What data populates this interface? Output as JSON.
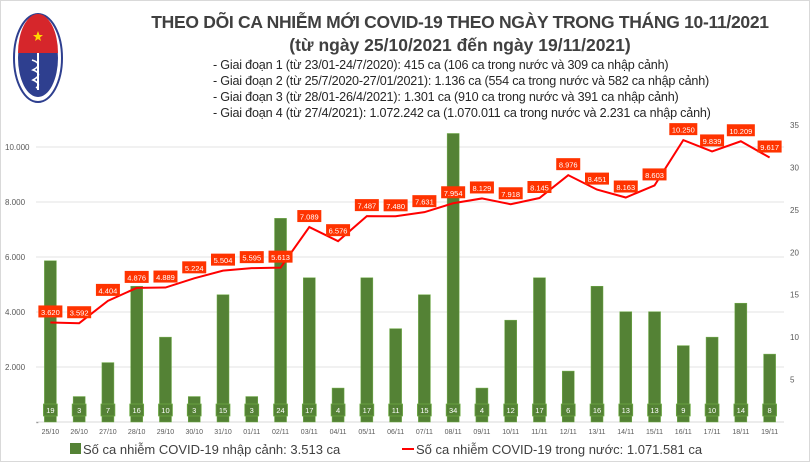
{
  "header": {
    "logo_text_top": "BỘ Y TẾ",
    "logo_text_bottom": "MINISTRY OF HEALTH",
    "title": "THEO DÕI CA NHIỄM MỚI COVID-19 THEO NGÀY TRONG THÁNG 10-11/2021",
    "subtitle": "(từ ngày 25/10/2021 đến ngày 19/11/2021)",
    "stages": [
      "- Giai đoạn 1 (từ 23/01-24/7/2020): 415 ca (106 ca trong nước và 309 ca nhập cảnh)",
      "- Giai đoạn 2 (từ 25/7/2020-27/01/2021): 1.136 ca (554 ca trong nước và 582 ca nhập cảnh)",
      "- Giai đoạn 3 (từ 28/01-26/4/2021): 1.301 ca (910 ca trong nước và 391 ca nhập cảnh)",
      "- Giai đoạn 4 (từ 27/4/2021): 1.072.242 ca (1.070.011 ca trong nước và 2.231 ca nhập cảnh)"
    ]
  },
  "chart_data": {
    "type": "bar+line",
    "categories": [
      "25/10",
      "26/10",
      "27/10",
      "28/10",
      "29/10",
      "30/10",
      "31/10",
      "01/11",
      "02/11",
      "03/11",
      "04/11",
      "05/11",
      "06/11",
      "07/11",
      "08/11",
      "09/11",
      "10/11",
      "11/11",
      "12/11",
      "13/11",
      "14/11",
      "15/11",
      "16/11",
      "17/11",
      "18/11",
      "19/11"
    ],
    "series": [
      {
        "name": "Số ca nhiễm COVID-19 nhập cảnh: 3.513 ca",
        "type": "bar",
        "axis": "right",
        "color": "#548235",
        "values": [
          19,
          3,
          7,
          16,
          10,
          3,
          15,
          3,
          24,
          17,
          4,
          17,
          11,
          15,
          34,
          4,
          12,
          17,
          6,
          16,
          13,
          13,
          9,
          10,
          14,
          8
        ]
      },
      {
        "name": "Số ca nhiễm COVID-19 trong nước: 1.071.581 ca",
        "type": "line",
        "axis": "left",
        "color": "#ff0000",
        "values": [
          3620,
          3592,
          4404,
          4876,
          4889,
          5224,
          5504,
          5595,
          5613,
          7089,
          6576,
          7487,
          7480,
          7631,
          7954,
          8129,
          7918,
          8145,
          8976,
          8451,
          8163,
          8603,
          10250,
          9839,
          10209,
          9617
        ],
        "labels": [
          "3.620",
          "3.592",
          "4.404",
          "4.876",
          "4.889",
          "5.224",
          "5.504",
          "5.595",
          "5.613",
          "7.089",
          "6.576",
          "7.487",
          "7.480",
          "7.631",
          "7.954",
          "8.129",
          "7.918",
          "8.145",
          "8.976",
          "8.451",
          "8.163",
          "8.603",
          "10.250",
          "9.839",
          "10.209",
          "9.617"
        ]
      }
    ],
    "left_axis": {
      "ticks": [
        "-",
        "2.000",
        "4.000",
        "6.000",
        "8.000",
        "10.000"
      ],
      "tick_values": [
        0,
        2000,
        4000,
        6000,
        8000,
        10000
      ]
    },
    "right_axis": {
      "ticks": [
        "5",
        "10",
        "15",
        "20",
        "25",
        "30",
        "35"
      ],
      "tick_values": [
        5,
        10,
        15,
        20,
        25,
        30,
        35
      ],
      "ylim": [
        0,
        35
      ]
    },
    "grid": true,
    "legend_position": "bottom"
  }
}
